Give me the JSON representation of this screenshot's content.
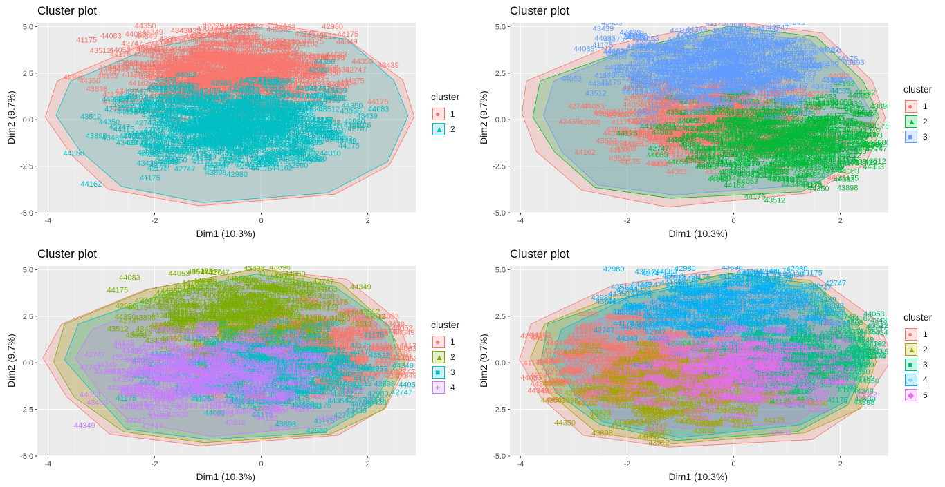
{
  "chart_data": [
    {
      "type": "scatter",
      "title": "Cluster plot",
      "xlabel": "Dim1 (10.3%)",
      "ylabel": "Dim2 (9.7%)",
      "xlim": [
        -4.2,
        2.9
      ],
      "ylim": [
        -5.0,
        5.2
      ],
      "xticks": [
        -4,
        -2,
        0,
        2
      ],
      "yticks": [
        -5.0,
        -2.5,
        0.0,
        2.5,
        5.0
      ],
      "grid": true,
      "legend_title": "cluster",
      "legend_position": "right",
      "series": [
        {
          "name": "1",
          "color": "#F8766D",
          "shape": "circle"
        },
        {
          "name": "2",
          "color": "#00BFC4",
          "shape": "triangle"
        }
      ]
    },
    {
      "type": "scatter",
      "title": "Cluster plot",
      "xlabel": "Dim1 (10.3%)",
      "ylabel": "Dim2 (9.7%)",
      "xlim": [
        -4.2,
        2.9
      ],
      "ylim": [
        -5.0,
        5.2
      ],
      "xticks": [
        -4,
        -2,
        0,
        2
      ],
      "yticks": [
        -5.0,
        -2.5,
        0.0,
        2.5,
        5.0
      ],
      "grid": true,
      "legend_title": "cluster",
      "legend_position": "right",
      "series": [
        {
          "name": "1",
          "color": "#F8766D",
          "shape": "circle"
        },
        {
          "name": "2",
          "color": "#00BA38",
          "shape": "triangle"
        },
        {
          "name": "3",
          "color": "#619CFF",
          "shape": "square"
        }
      ]
    },
    {
      "type": "scatter",
      "title": "Cluster plot",
      "xlabel": "Dim1 (10.3%)",
      "ylabel": "Dim2 (9.7%)",
      "xlim": [
        -4.2,
        2.9
      ],
      "ylim": [
        -5.0,
        5.2
      ],
      "xticks": [
        -4,
        -2,
        0,
        2
      ],
      "yticks": [
        -5.0,
        -2.5,
        0.0,
        2.5,
        5.0
      ],
      "grid": true,
      "legend_title": "cluster",
      "legend_position": "right",
      "series": [
        {
          "name": "1",
          "color": "#F8766D",
          "shape": "circle"
        },
        {
          "name": "2",
          "color": "#7CAE00",
          "shape": "triangle"
        },
        {
          "name": "3",
          "color": "#00BFC4",
          "shape": "square"
        },
        {
          "name": "4",
          "color": "#C77CFF",
          "shape": "cross"
        }
      ]
    },
    {
      "type": "scatter",
      "title": "Cluster plot",
      "xlabel": "Dim1 (10.3%)",
      "ylabel": "Dim2 (9.7%)",
      "xlim": [
        -4.2,
        2.9
      ],
      "ylim": [
        -5.0,
        5.2
      ],
      "xticks": [
        -4,
        -2,
        0,
        2
      ],
      "yticks": [
        -5.0,
        -2.5,
        0.0,
        2.5,
        5.0
      ],
      "grid": true,
      "legend_title": "cluster",
      "legend_position": "right",
      "series": [
        {
          "name": "1",
          "color": "#F8766D",
          "shape": "circle"
        },
        {
          "name": "2",
          "color": "#A3A500",
          "shape": "triangle"
        },
        {
          "name": "3",
          "color": "#00BF7D",
          "shape": "square"
        },
        {
          "name": "4",
          "color": "#00B0F6",
          "shape": "cross"
        },
        {
          "name": "5",
          "color": "#E76BF3",
          "shape": "diamond"
        }
      ]
    }
  ],
  "point_labels": [
    "43898",
    "43439",
    "44349",
    "44162",
    "42747",
    "41175",
    "44053",
    "44350",
    "43512",
    "44083",
    "42980",
    "44175"
  ]
}
